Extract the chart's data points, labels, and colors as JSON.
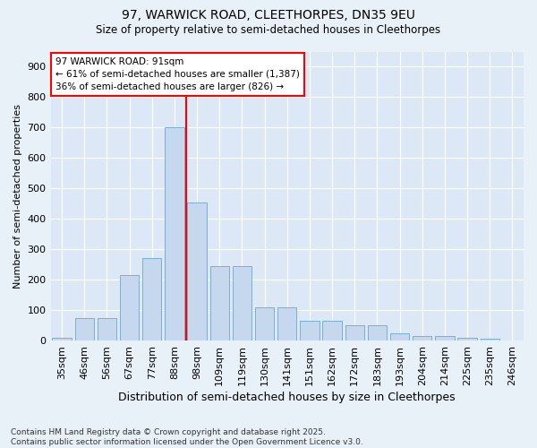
{
  "title1": "97, WARWICK ROAD, CLEETHORPES, DN35 9EU",
  "title2": "Size of property relative to semi-detached houses in Cleethorpes",
  "xlabel": "Distribution of semi-detached houses by size in Cleethorpes",
  "ylabel": "Number of semi-detached properties",
  "categories": [
    "35sqm",
    "46sqm",
    "56sqm",
    "67sqm",
    "77sqm",
    "88sqm",
    "98sqm",
    "109sqm",
    "119sqm",
    "130sqm",
    "141sqm",
    "151sqm",
    "162sqm",
    "172sqm",
    "183sqm",
    "193sqm",
    "204sqm",
    "214sqm",
    "225sqm",
    "235sqm",
    "246sqm"
  ],
  "values": [
    10,
    75,
    75,
    215,
    270,
    700,
    455,
    245,
    245,
    110,
    110,
    65,
    65,
    50,
    50,
    25,
    15,
    15,
    10,
    5,
    2
  ],
  "bar_color": "#c5d8ed",
  "bar_edge_color": "#7aafd4",
  "property_line_x": 5.5,
  "annotation_line1": "97 WARWICK ROAD: 91sqm",
  "annotation_line2": "← 61% of semi-detached houses are smaller (1,387)",
  "annotation_line3": "36% of semi-detached houses are larger (826) →",
  "footer": "Contains HM Land Registry data © Crown copyright and database right 2025.\nContains public sector information licensed under the Open Government Licence v3.0.",
  "ylim": [
    0,
    950
  ],
  "yticks": [
    0,
    100,
    200,
    300,
    400,
    500,
    600,
    700,
    800,
    900
  ],
  "background_color": "#e8f0f8",
  "plot_bg_color": "#dce8f5"
}
